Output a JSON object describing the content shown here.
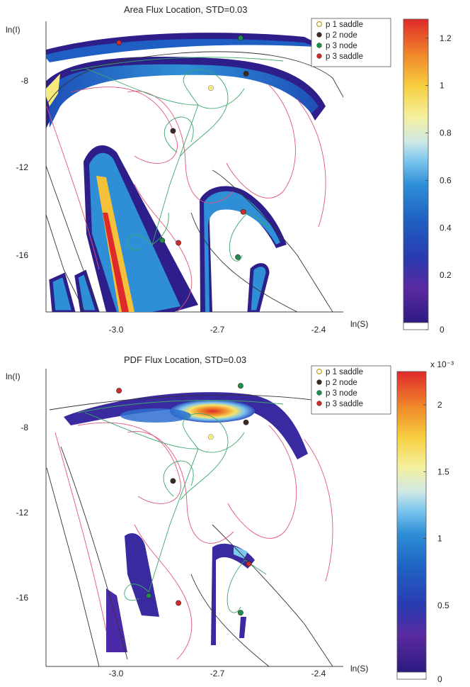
{
  "chart_data": [
    {
      "type": "heatmap",
      "title": "Area Flux Location, STD=0.03",
      "xlabel": "ln(S)",
      "ylabel": "ln(I)",
      "x_ticks": [
        "-3.0",
        "-2.7",
        "-2.4"
      ],
      "y_ticks": [
        "-8",
        "-12",
        "-16"
      ],
      "xlim": [
        -3.35,
        -2.25
      ],
      "ylim": [
        -18.5,
        -6.3
      ],
      "legend_placement": "top-right",
      "legend": [
        {
          "label": "p 1 saddle",
          "color": "#f1e650"
        },
        {
          "label": "p 2 node",
          "color": "#3a2a22"
        },
        {
          "label": "p 3 node",
          "color": "#1e8f4e"
        },
        {
          "label": "p 3 saddle",
          "color": "#d22a2a"
        }
      ],
      "colorbar": {
        "ticks": [
          "0",
          "0.2",
          "0.4",
          "0.6",
          "0.8",
          "1",
          "1.2"
        ],
        "min": 0,
        "max": 1.28,
        "multiplier": ""
      },
      "points": [
        {
          "name": "p 1 saddle",
          "x": -2.74,
          "y": -9.1
        },
        {
          "name": "p 2 node",
          "x": -2.61,
          "y": -8.5
        },
        {
          "name": "p 2 node",
          "x": -2.88,
          "y": -10.9
        },
        {
          "name": "p 3 node",
          "x": -2.63,
          "y": -7.0
        },
        {
          "name": "p 3 node",
          "x": -2.92,
          "y": -15.5
        },
        {
          "name": "p 3 node",
          "x": -2.64,
          "y": -16.2
        },
        {
          "name": "p 3 saddle",
          "x": -3.08,
          "y": -7.2
        },
        {
          "name": "p 3 saddle",
          "x": -2.86,
          "y": -15.6
        },
        {
          "name": "p 3 saddle",
          "x": -2.62,
          "y": -14.3
        }
      ]
    },
    {
      "type": "heatmap",
      "title": "PDF Flux Location, STD=0.03",
      "xlabel": "ln(S)",
      "ylabel": "ln(I)",
      "x_ticks": [
        "-3.0",
        "-2.7",
        "-2.4"
      ],
      "y_ticks": [
        "-8",
        "-12",
        "-16"
      ],
      "xlim": [
        -3.35,
        -2.25
      ],
      "ylim": [
        -18.5,
        -6.3
      ],
      "legend_placement": "top-right",
      "legend": [
        {
          "label": "p 1 saddle",
          "color": "#f1e650"
        },
        {
          "label": "p 2 node",
          "color": "#3a2a22"
        },
        {
          "label": "p 3 node",
          "color": "#1e8f4e"
        },
        {
          "label": "p 3 saddle",
          "color": "#d22a2a"
        }
      ],
      "colorbar": {
        "ticks": [
          "0",
          "0.5",
          "1",
          "1.5",
          "2"
        ],
        "min": 0,
        "max": 2.25,
        "multiplier": "x 10⁻³"
      },
      "points": [
        {
          "name": "p 1 saddle",
          "x": -2.74,
          "y": -9.1
        },
        {
          "name": "p 2 node",
          "x": -2.61,
          "y": -8.5
        },
        {
          "name": "p 2 node",
          "x": -2.88,
          "y": -10.9
        },
        {
          "name": "p 3 node",
          "x": -2.63,
          "y": -7.0
        },
        {
          "name": "p 3 node",
          "x": -2.97,
          "y": -15.6
        },
        {
          "name": "p 3 node",
          "x": -2.63,
          "y": -16.3
        },
        {
          "name": "p 3 saddle",
          "x": -3.08,
          "y": -7.2
        },
        {
          "name": "p 3 saddle",
          "x": -2.86,
          "y": -15.9
        },
        {
          "name": "p 3 saddle",
          "x": -2.6,
          "y": -14.3
        }
      ]
    }
  ]
}
